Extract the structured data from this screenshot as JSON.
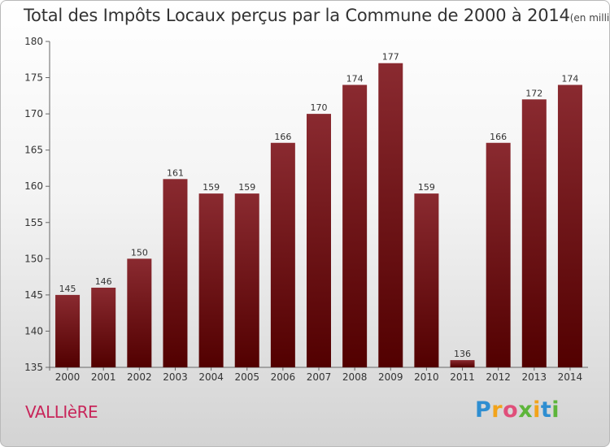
{
  "title": {
    "main": "Total des Impôts Locaux perçus par la Commune de 2000 à 2014",
    "unit": "(en milliers d'€)"
  },
  "commune": "VALLIèRE",
  "brand": {
    "letters": [
      "P",
      "r",
      "o",
      "x",
      "i",
      "t",
      "i"
    ]
  },
  "colors": {
    "bar_top": "#8a2a30",
    "bar_bottom": "#520000",
    "axis": "#666666"
  },
  "chart_data": {
    "type": "bar",
    "title": "Total des Impôts Locaux perçus par la Commune de 2000 à 2014",
    "xlabel": "",
    "ylabel": "",
    "categories": [
      "2000",
      "2001",
      "2002",
      "2003",
      "2004",
      "2005",
      "2006",
      "2007",
      "2008",
      "2009",
      "2010",
      "2011",
      "2012",
      "2013",
      "2014"
    ],
    "values": [
      145,
      146,
      150,
      161,
      159,
      159,
      166,
      170,
      174,
      177,
      159,
      136,
      166,
      172,
      174
    ],
    "ylim": [
      135,
      180
    ],
    "yticks": [
      135,
      140,
      145,
      150,
      155,
      160,
      165,
      170,
      175,
      180
    ],
    "grid": false
  }
}
